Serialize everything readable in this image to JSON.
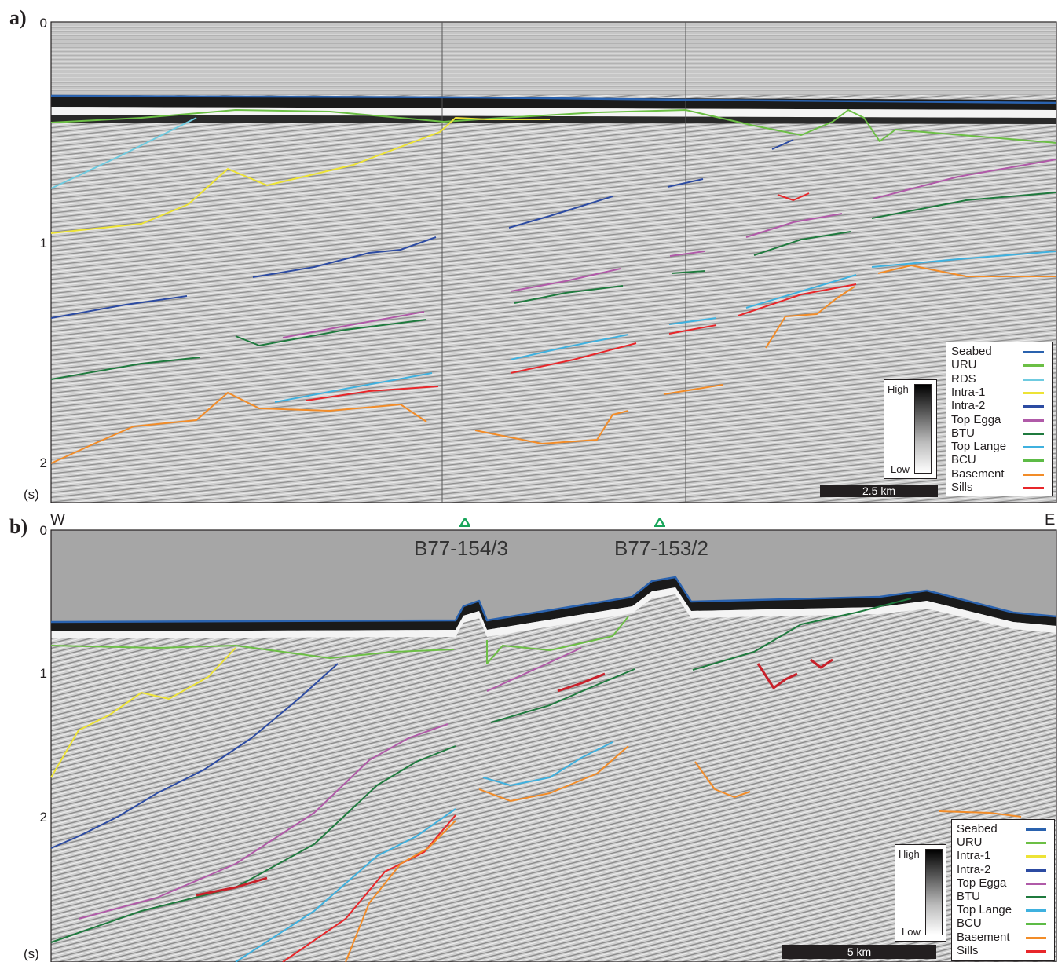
{
  "panel_a": {
    "letter": "a)",
    "ticks": [
      "0",
      "1",
      "2"
    ],
    "unit": "(s)",
    "scale_bar": "2.5 km",
    "colorbar": {
      "high": "High",
      "low": "Low"
    },
    "legend": [
      {
        "label": "Seabed",
        "color": "#2a62ae"
      },
      {
        "label": "URU",
        "color": "#6cbf45"
      },
      {
        "label": "RDS",
        "color": "#6fcbe0"
      },
      {
        "label": "Intra-1",
        "color": "#ede336"
      },
      {
        "label": "Intra-2",
        "color": "#2c4ba2"
      },
      {
        "label": "Top Egga",
        "color": "#b05aa8"
      },
      {
        "label": "BTU",
        "color": "#1f7a3e"
      },
      {
        "label": "Top Lange",
        "color": "#3fb1df"
      },
      {
        "label": "BCU",
        "color": "#5dbb46"
      },
      {
        "label": "Basement",
        "color": "#f28c28"
      },
      {
        "label": "Sills",
        "color": "#e8262a"
      }
    ]
  },
  "panel_b": {
    "letter": "b)",
    "ticks": [
      "0",
      "1",
      "2"
    ],
    "unit": "(s)",
    "west": "W",
    "east": "E",
    "wells": [
      {
        "name": "B77-154/3"
      },
      {
        "name": "B77-153/2"
      }
    ],
    "well_color": "#19a55a",
    "scale_bar": "5 km",
    "colorbar": {
      "high": "High",
      "low": "Low"
    },
    "legend": [
      {
        "label": "Seabed",
        "color": "#2a62ae"
      },
      {
        "label": "URU",
        "color": "#6cbf45"
      },
      {
        "label": "Intra-1",
        "color": "#ede336"
      },
      {
        "label": "Intra-2",
        "color": "#2c4ba2"
      },
      {
        "label": "Top Egga",
        "color": "#b05aa8"
      },
      {
        "label": "BTU",
        "color": "#1f7a3e"
      },
      {
        "label": "Top Lange",
        "color": "#3fb1df"
      },
      {
        "label": "BCU",
        "color": "#5dbb46"
      },
      {
        "label": "Basement",
        "color": "#f28c28"
      },
      {
        "label": "Sills",
        "color": "#e8262a"
      }
    ]
  }
}
